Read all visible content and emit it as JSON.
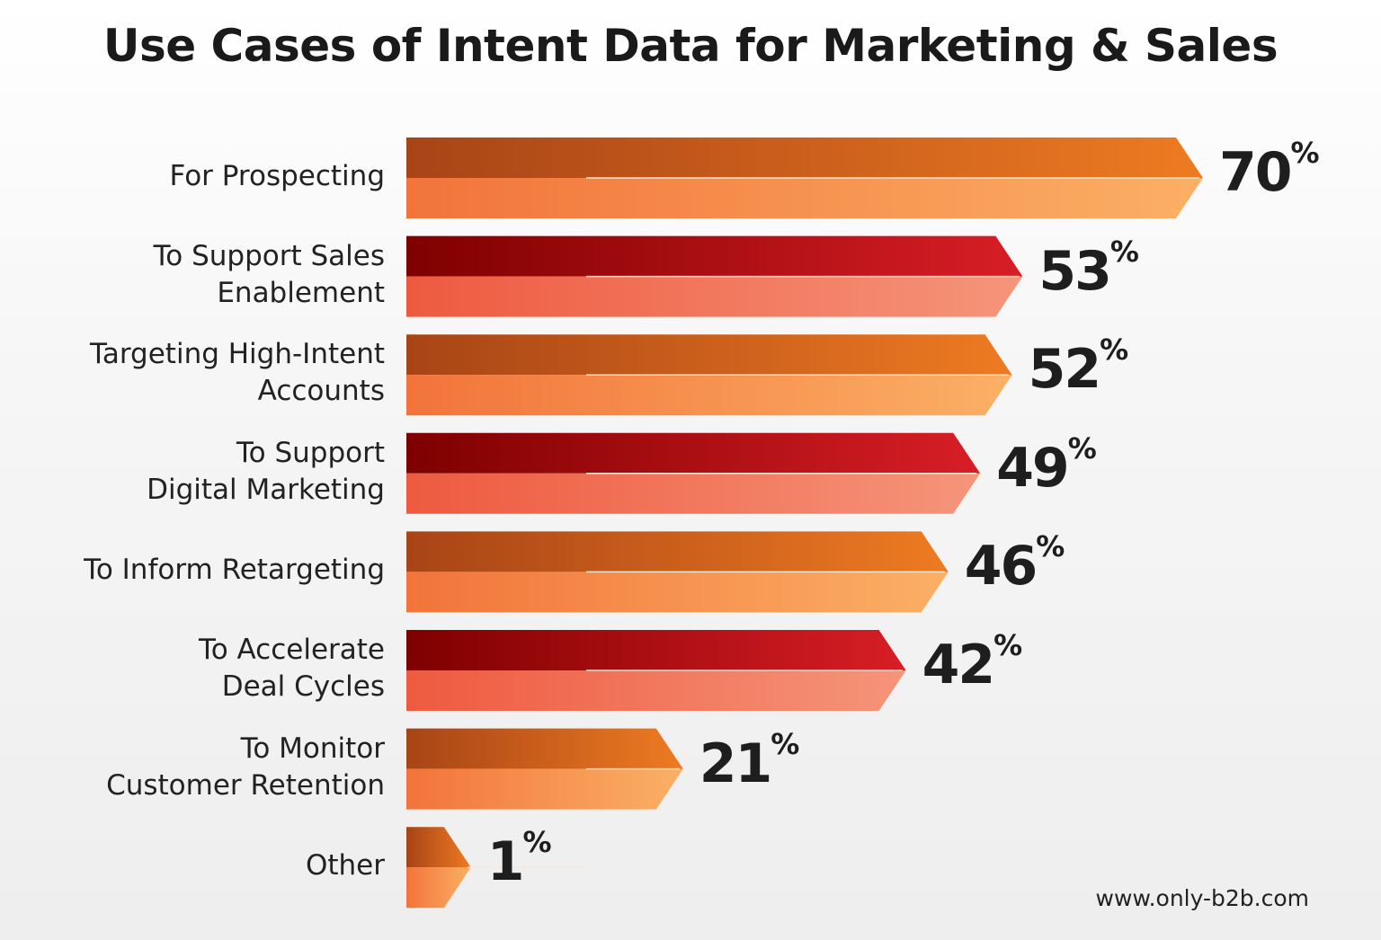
{
  "chart_data": {
    "type": "bar",
    "orientation": "horizontal",
    "title": "Use Cases of Intent Data for Marketing & Sales",
    "categories": [
      "For Prospecting",
      "To Support Sales Enablement",
      "Targeting High-Intent Accounts",
      "To Support Digital Marketing",
      "To Inform Retargeting",
      "To Accelerate Deal Cycles",
      "To Monitor Customer Retention",
      "Other"
    ],
    "label_lines": [
      [
        "For Prospecting"
      ],
      [
        "To Support Sales",
        "Enablement"
      ],
      [
        "Targeting High-Intent",
        "Accounts"
      ],
      [
        "To Support",
        "Digital Marketing"
      ],
      [
        "To Inform Retargeting"
      ],
      [
        "To Accelerate",
        "Deal Cycles"
      ],
      [
        "To Monitor",
        "Customer Retention"
      ],
      [
        "Other"
      ]
    ],
    "values": [
      70,
      53,
      52,
      49,
      46,
      42,
      21,
      1
    ],
    "value_suffix": "%",
    "colors": {
      "orange": [
        "#a84416",
        "#ee7b22",
        "#f2743a",
        "#fbb065"
      ],
      "red": [
        "#7e0000",
        "#d81e26",
        "#ee5a40",
        "#f5957a"
      ]
    },
    "color_pattern": [
      "orange",
      "red",
      "orange",
      "red",
      "orange",
      "red",
      "orange",
      "orange"
    ],
    "grid": false
  },
  "footer": "www.only-b2b.com"
}
